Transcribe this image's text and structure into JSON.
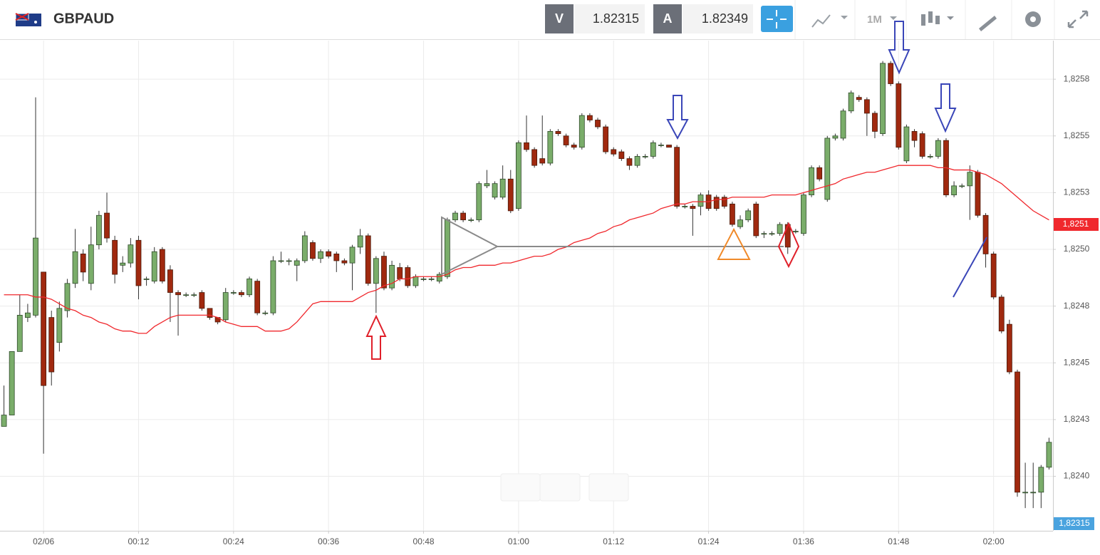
{
  "header": {
    "symbol": "GBPAUD",
    "bid_label": "V",
    "bid": "1.82315",
    "ask_label": "A",
    "ask": "1.82349",
    "timeframe": "1M"
  },
  "chart_data": {
    "type": "candlestick",
    "categories": [
      null,
      null,
      null,
      null,
      null,
      "02/06",
      null,
      null,
      null,
      null,
      null,
      null,
      null,
      null,
      null,
      null,
      null,
      "00:12",
      null,
      null,
      null,
      null,
      null,
      null,
      null,
      null,
      null,
      null,
      null,
      "00:24",
      null,
      null,
      null,
      null,
      null,
      null,
      null,
      null,
      null,
      null,
      null,
      "00:36",
      null,
      null,
      null,
      null,
      null,
      null,
      null,
      null,
      null,
      null,
      null,
      "00:48",
      null,
      null,
      null,
      null,
      null,
      null,
      null,
      null,
      null,
      null,
      null,
      "01:00",
      null,
      null,
      null,
      null,
      null,
      null,
      null,
      null,
      null,
      null,
      null,
      "01:12",
      null,
      null,
      null,
      null,
      null,
      null,
      null,
      null,
      null,
      null,
      null,
      "01:24",
      null,
      null,
      null,
      null,
      null,
      null,
      null,
      null,
      null,
      null,
      null,
      "01:36",
      null,
      null,
      null,
      null,
      null,
      null,
      null,
      null,
      null,
      null,
      null,
      "01:48",
      null,
      null,
      null,
      null,
      null,
      null,
      null,
      null,
      null,
      null,
      null,
      "02:00",
      null,
      null,
      null,
      null,
      null,
      null,
      null
    ],
    "open": [
      1.82422,
      1.82427,
      1.82455,
      1.8247,
      1.82471,
      1.8249,
      1.8247,
      1.82459,
      1.82473,
      1.82485,
      1.82498,
      1.82485,
      1.82502,
      1.82516,
      1.82504,
      1.82493,
      1.82494,
      1.82504,
      1.82487,
      1.82486,
      1.825,
      1.82491,
      1.82481,
      1.8248,
      1.8248,
      1.82481,
      1.82474,
      1.8247,
      1.82469,
      1.82481,
      1.82481,
      1.8248,
      1.82486,
      1.82472,
      1.82472,
      1.82495,
      1.82495,
      1.82493,
      1.82495,
      1.82503,
      1.82496,
      1.82499,
      1.82498,
      1.82495,
      1.82494,
      1.82501,
      1.82506,
      1.82485,
      1.82497,
      1.82483,
      1.82492,
      1.82492,
      1.82484,
      1.82487,
      1.82487,
      1.82486,
      1.82488,
      1.82513,
      1.82516,
      1.82513,
      1.82513,
      1.82528,
      1.82523,
      1.82523,
      1.82531,
      1.82518,
      1.82547,
      1.82544,
      1.8254,
      1.82538,
      1.82552,
      1.8255,
      1.82546,
      1.82545,
      1.82559,
      1.82557,
      1.82554,
      1.82544,
      1.82543,
      1.8254,
      1.82537,
      1.82541,
      1.82541,
      1.82546,
      1.82546,
      1.82545,
      1.82519,
      1.82519,
      1.82519,
      1.82524,
      1.82523,
      1.82523,
      1.8252,
      1.8251,
      1.82513,
      1.8252,
      1.82507,
      1.82507,
      1.82507,
      1.82511,
      1.82508,
      1.82507,
      1.82524,
      1.82536,
      1.82522,
      1.82549,
      1.82549,
      1.82561,
      1.82567,
      1.82566,
      1.8256,
      1.82551,
      1.82582,
      1.82573,
      1.82539,
      1.82552,
      1.82551,
      1.82541,
      1.82541,
      1.82548,
      1.82524,
      1.82528,
      1.82528,
      1.82534,
      1.82515,
      1.82498,
      1.82479,
      1.82467,
      1.82446,
      1.82393,
      1.82393,
      1.82393,
      1.82404
    ],
    "high": [
      1.8244,
      1.82455,
      1.8248,
      1.82476,
      1.82567,
      1.8249,
      1.82473,
      1.82477,
      1.82487,
      1.82509,
      1.825,
      1.8251,
      1.82517,
      1.82525,
      1.82506,
      1.82497,
      1.82505,
      1.82506,
      1.82488,
      1.82501,
      1.82501,
      1.82493,
      1.82482,
      1.82481,
      1.82481,
      1.82482,
      1.82474,
      1.8247,
      1.82483,
      1.82482,
      1.82482,
      1.82488,
      1.82487,
      1.82473,
      1.82497,
      1.82499,
      1.82496,
      1.82496,
      1.82508,
      1.82504,
      1.825,
      1.825,
      1.82499,
      1.82496,
      1.82502,
      1.82509,
      1.82507,
      1.82497,
      1.82499,
      1.82495,
      1.82494,
      1.82493,
      1.82489,
      1.82488,
      1.82488,
      1.8249,
      1.82514,
      1.82517,
      1.82517,
      1.82514,
      1.8253,
      1.82535,
      1.8253,
      1.82537,
      1.82535,
      1.82548,
      1.82559,
      1.82545,
      1.82559,
      1.82553,
      1.82553,
      1.82551,
      1.82547,
      1.8256,
      1.8256,
      1.82558,
      1.82555,
      1.82545,
      1.82544,
      1.82541,
      1.82542,
      1.82542,
      1.82548,
      1.82547,
      1.82546,
      1.82546,
      1.8252,
      1.8252,
      1.82525,
      1.82526,
      1.82524,
      1.82524,
      1.82521,
      1.82515,
      1.82518,
      1.82521,
      1.82508,
      1.82508,
      1.82512,
      1.82512,
      1.82509,
      1.82525,
      1.82537,
      1.82537,
      1.8255,
      1.82551,
      1.82562,
      1.8257,
      1.82568,
      1.82567,
      1.82561,
      1.82583,
      1.82583,
      1.82574,
      1.82555,
      1.82553,
      1.82552,
      1.82542,
      1.82549,
      1.82549,
      1.8253,
      1.82529,
      1.82537,
      1.82535,
      1.82516,
      1.82499,
      1.8248,
      1.82469,
      1.82447,
      1.82406,
      1.82406,
      1.82405,
      1.82417
    ],
    "low": [
      1.82422,
      1.82427,
      1.82455,
      1.82468,
      1.8247,
      1.8241,
      1.8244,
      1.82455,
      1.8247,
      1.82483,
      1.82486,
      1.82482,
      1.825,
      1.82503,
      1.82485,
      1.8249,
      1.82492,
      1.82478,
      1.82484,
      1.82485,
      1.82485,
      1.82468,
      1.82462,
      1.82479,
      1.82479,
      1.82473,
      1.82469,
      1.82467,
      1.82468,
      1.8248,
      1.82479,
      1.82479,
      1.82471,
      1.82471,
      1.82471,
      1.82494,
      1.82493,
      1.82486,
      1.82494,
      1.82495,
      1.82494,
      1.82496,
      1.8249,
      1.82493,
      1.82482,
      1.82498,
      1.82484,
      1.82472,
      1.82482,
      1.82482,
      1.82486,
      1.82483,
      1.82483,
      1.82486,
      1.82486,
      1.82485,
      1.82487,
      1.82512,
      1.82512,
      1.82512,
      1.82512,
      1.82527,
      1.82522,
      1.82522,
      1.82516,
      1.82517,
      1.82543,
      1.82536,
      1.82537,
      1.82537,
      1.8255,
      1.82545,
      1.82544,
      1.82544,
      1.82556,
      1.82553,
      1.82542,
      1.82541,
      1.82539,
      1.82535,
      1.82536,
      1.8254,
      1.8254,
      1.82545,
      1.82545,
      1.82518,
      1.82518,
      1.82506,
      1.82515,
      1.82517,
      1.82517,
      1.82518,
      1.8251,
      1.82509,
      1.82512,
      1.82505,
      1.82505,
      1.82506,
      1.82506,
      1.82498,
      1.82507,
      1.82506,
      1.82523,
      1.8253,
      1.82521,
      1.82548,
      1.82548,
      1.8256,
      1.82565,
      1.8255,
      1.82549,
      1.8255,
      1.82572,
      1.82544,
      1.82538,
      1.82545,
      1.8254,
      1.8254,
      1.8254,
      1.82523,
      1.82523,
      1.82527,
      1.82513,
      1.82514,
      1.82492,
      1.82478,
      1.82463,
      1.82445,
      1.82391,
      1.82386,
      1.82386,
      1.82386,
      1.82403
    ],
    "close": [
      1.82427,
      1.82455,
      1.82471,
      1.82472,
      1.82505,
      1.8244,
      1.82446,
      1.82474,
      1.82485,
      1.82499,
      1.8249,
      1.82502,
      1.82515,
      1.82505,
      1.82489,
      1.82494,
      1.82502,
      1.82484,
      1.82487,
      1.82499,
      1.82486,
      1.82481,
      1.8248,
      1.8248,
      1.8248,
      1.82474,
      1.8247,
      1.82468,
      1.82481,
      1.82481,
      1.8248,
      1.82487,
      1.82472,
      1.82472,
      1.82495,
      1.82495,
      1.82495,
      1.82495,
      1.82506,
      1.82496,
      1.82499,
      1.82497,
      1.82495,
      1.82494,
      1.82501,
      1.82506,
      1.82485,
      1.82496,
      1.82483,
      1.82493,
      1.82487,
      1.82484,
      1.82488,
      1.82487,
      1.82487,
      1.82489,
      1.82513,
      1.82516,
      1.82513,
      1.82513,
      1.82529,
      1.82529,
      1.82529,
      1.82531,
      1.82517,
      1.82547,
      1.82544,
      1.82537,
      1.82538,
      1.82552,
      1.82551,
      1.82546,
      1.82545,
      1.82559,
      1.82557,
      1.82554,
      1.82543,
      1.82542,
      1.8254,
      1.82537,
      1.82541,
      1.82541,
      1.82547,
      1.82546,
      1.82545,
      1.82519,
      1.82519,
      1.82518,
      1.82524,
      1.82518,
      1.82518,
      1.82519,
      1.82511,
      1.82513,
      1.82517,
      1.82506,
      1.82507,
      1.82507,
      1.82511,
      1.82501,
      1.82508,
      1.82524,
      1.82536,
      1.82531,
      1.82549,
      1.8255,
      1.82561,
      1.82569,
      1.82566,
      1.8256,
      1.82552,
      1.82582,
      1.82573,
      1.82545,
      1.82554,
      1.82548,
      1.82541,
      1.82541,
      1.82548,
      1.82524,
      1.82528,
      1.82528,
      1.82534,
      1.82515,
      1.82498,
      1.82479,
      1.82464,
      1.82446,
      1.82393,
      1.82393,
      1.82393,
      1.82404,
      1.82415
    ],
    "up_color": "#7aad6a",
    "down_color": "#a0290f",
    "ma": {
      "color": "#f0282d",
      "values": [
        1.8248,
        1.8248,
        1.8248,
        1.8248,
        1.82479,
        1.82479,
        1.82478,
        1.82476,
        1.82474,
        1.82473,
        1.82471,
        1.8247,
        1.82468,
        1.82467,
        1.82465,
        1.82464,
        1.82464,
        1.82463,
        1.82463,
        1.82466,
        1.82468,
        1.8247,
        1.82471,
        1.82471,
        1.82471,
        1.82471,
        1.82471,
        1.8247,
        1.82468,
        1.82467,
        1.82466,
        1.82466,
        1.82466,
        1.82464,
        1.82464,
        1.82464,
        1.82465,
        1.82468,
        1.82472,
        1.82476,
        1.82477,
        1.82477,
        1.82477,
        1.82477,
        1.82477,
        1.82479,
        1.82481,
        1.82482,
        1.82484,
        1.82485,
        1.82487,
        1.82487,
        1.82488,
        1.82488,
        1.82488,
        1.82488,
        1.82489,
        1.82491,
        1.82492,
        1.82492,
        1.82493,
        1.82493,
        1.82493,
        1.82494,
        1.82494,
        1.82495,
        1.82496,
        1.82497,
        1.82497,
        1.82498,
        1.825,
        1.82501,
        1.82503,
        1.82504,
        1.82505,
        1.82507,
        1.82508,
        1.8251,
        1.82511,
        1.82513,
        1.82514,
        1.82515,
        1.82516,
        1.82518,
        1.82519,
        1.8252,
        1.8252,
        1.82521,
        1.82521,
        1.82521,
        1.82522,
        1.82522,
        1.82523,
        1.82523,
        1.82523,
        1.82523,
        1.82523,
        1.82524,
        1.82524,
        1.82524,
        1.82524,
        1.82525,
        1.82526,
        1.82527,
        1.82528,
        1.82529,
        1.82531,
        1.82532,
        1.82533,
        1.82534,
        1.82534,
        1.82535,
        1.82536,
        1.82537,
        1.82537,
        1.82537,
        1.82537,
        1.82537,
        1.82536,
        1.82536,
        1.82535,
        1.82535,
        1.82535,
        1.82534,
        1.82533,
        1.82531,
        1.82529,
        1.82526,
        1.82523,
        1.8252,
        1.82517,
        1.82515,
        1.82513
      ]
    },
    "ma_tag": {
      "value": 1.82511,
      "label": "1,8251"
    },
    "price_tag_label": "1,82315",
    "ylim": [
      1.82376,
      1.82592
    ],
    "yticks": [
      {
        "value": 1.824,
        "label": "1,8240"
      },
      {
        "value": 1.82425,
        "label": "1,8243"
      },
      {
        "value": 1.8245,
        "label": "1,8245"
      },
      {
        "value": 1.82475,
        "label": "1,8248"
      },
      {
        "value": 1.825,
        "label": "1,8250"
      },
      {
        "value": 1.82525,
        "label": "1,8253"
      },
      {
        "value": 1.8255,
        "label": "1,8255"
      },
      {
        "value": 1.82575,
        "label": "1,8258"
      }
    ],
    "grid": true
  }
}
